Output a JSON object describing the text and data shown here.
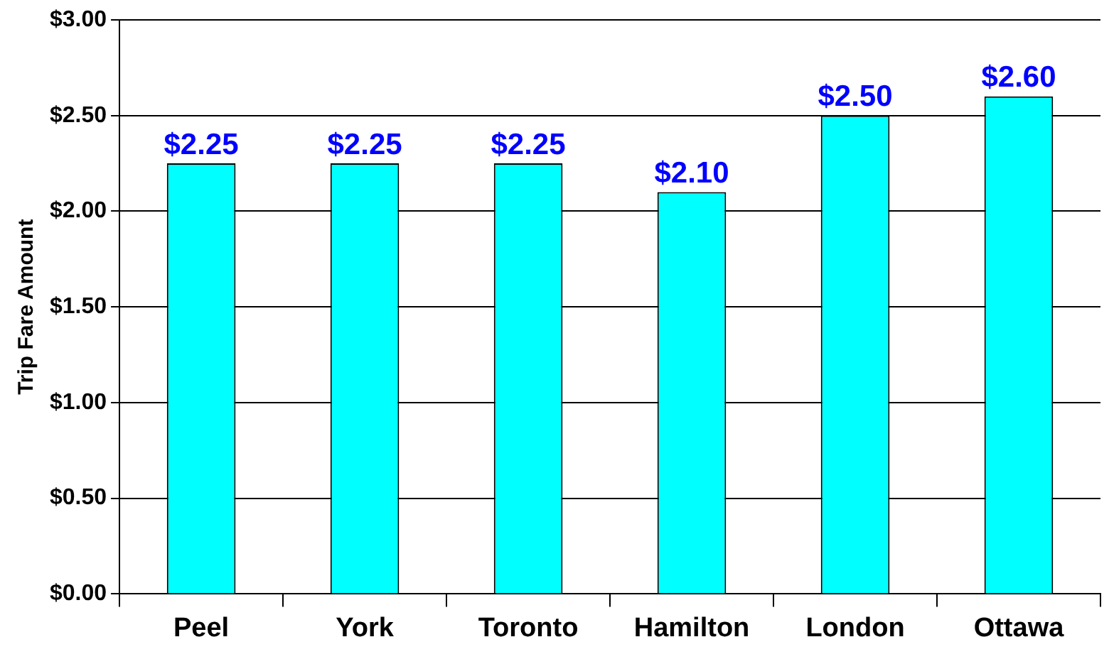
{
  "chart_data": {
    "type": "bar",
    "ylabel": "Trip Fare Amount",
    "categories": [
      "Peel",
      "York",
      "Toronto",
      "Hamilton",
      "London",
      "Ottawa"
    ],
    "values": [
      2.25,
      2.25,
      2.25,
      2.1,
      2.5,
      2.6
    ],
    "color": "#00ffff",
    "value_labels": [
      "$2.25",
      "$2.25",
      "$2.25",
      "$2.10",
      "$2.50",
      "$2.60"
    ],
    "ylim": [
      0,
      3
    ],
    "yticks": [
      {
        "value": 0,
        "label": "$0.00"
      },
      {
        "value": 0.5,
        "label": "$0.50"
      },
      {
        "value": 1,
        "label": "$1.00"
      },
      {
        "value": 1.5,
        "label": "$1.50"
      },
      {
        "value": 2,
        "label": "$2.00"
      },
      {
        "value": 2.5,
        "label": "$2.50"
      },
      {
        "value": 3,
        "label": "$3.00"
      }
    ],
    "grid": "y"
  }
}
